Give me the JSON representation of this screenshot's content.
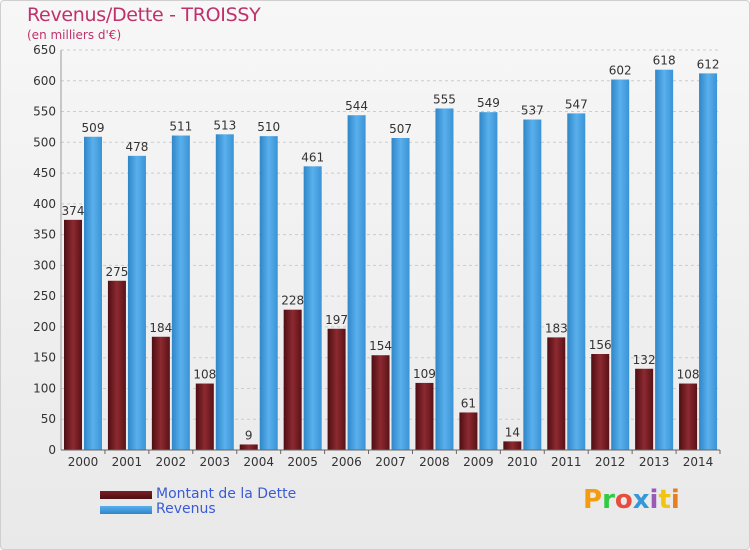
{
  "title": "Revenus/Dette - TROISSY",
  "subtitle": "(en milliers d'€)",
  "logo": {
    "letters": [
      "P",
      "r",
      "o",
      "x",
      "i",
      "t",
      "i"
    ],
    "colors": [
      "#f39c12",
      "#2ecc40",
      "#e74c3c",
      "#3498db",
      "#9b59b6",
      "#f1c40f",
      "#e67e22"
    ]
  },
  "chart_data": {
    "type": "bar",
    "categories": [
      "2000",
      "2001",
      "2002",
      "2003",
      "2004",
      "2005",
      "2006",
      "2007",
      "2008",
      "2009",
      "2010",
      "2011",
      "2012",
      "2013",
      "2014"
    ],
    "series": [
      {
        "name": "Montant de la Dette",
        "color": "#7a1f24",
        "values": [
          374,
          275,
          184,
          108,
          9,
          228,
          197,
          154,
          109,
          61,
          14,
          183,
          156,
          132,
          108
        ]
      },
      {
        "name": "Revenus",
        "color": "#3f9ddf",
        "values": [
          509,
          478,
          511,
          513,
          510,
          461,
          544,
          507,
          555,
          549,
          537,
          547,
          602,
          618,
          612
        ]
      }
    ],
    "yticks": [
      0,
      50,
      100,
      150,
      200,
      250,
      300,
      350,
      400,
      450,
      500,
      550,
      600,
      650
    ],
    "ylim": [
      0,
      650
    ],
    "grid": true,
    "legend": "bottom-left"
  }
}
